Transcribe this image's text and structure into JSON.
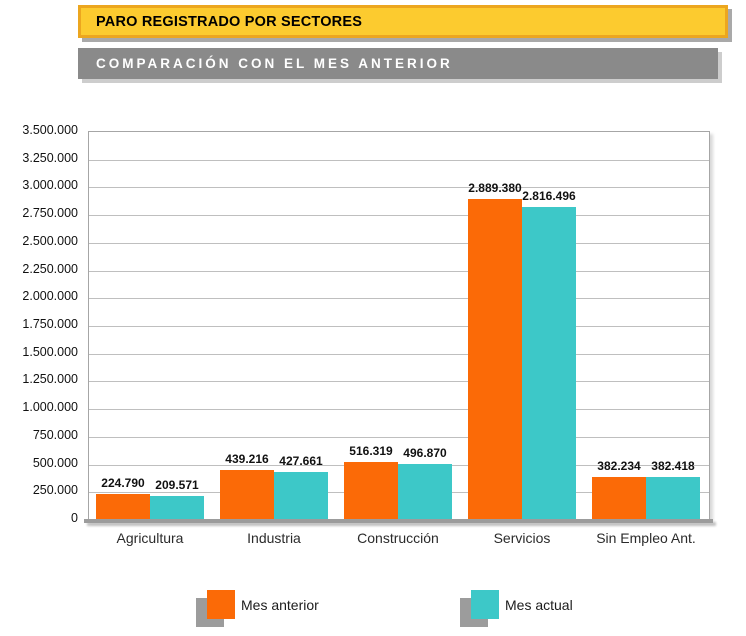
{
  "header": {
    "title": "PARO REGISTRADO POR SECTORES",
    "subtitle": "COMPARACIÓN CON EL MES ANTERIOR"
  },
  "colors": {
    "prev_month": "#FB6A07",
    "current_month": "#3DC8C8",
    "title_bg": "#FCCB2F",
    "title_border": "#ECA61F",
    "subtitle_bg": "#8A8A8A"
  },
  "chart_data": {
    "type": "bar",
    "title": "PARO REGISTRADO POR SECTORES",
    "subtitle": "COMPARACIÓN CON EL MES ANTERIOR",
    "categories": [
      "Agricultura",
      "Industria",
      "Construcción",
      "Servicios",
      "Sin Empleo Ant."
    ],
    "series": [
      {
        "name": "Mes anterior",
        "color_key": "prev_month",
        "values": [
          224790,
          439216,
          516319,
          2889380,
          382234
        ],
        "labels": [
          "224.790",
          "439.216",
          "516.319",
          "2.889.380",
          "382.234"
        ]
      },
      {
        "name": "Mes actual",
        "color_key": "current_month",
        "values": [
          209571,
          427661,
          496870,
          2816496,
          382418
        ],
        "labels": [
          "209.571",
          "427.661",
          "496.870",
          "2.816.496",
          "382.418"
        ]
      }
    ],
    "ylim": [
      0,
      3500000
    ],
    "ytick_step": 250000,
    "ytick_labels": [
      "0",
      "250.000",
      "500.000",
      "750.000",
      "1.000.000",
      "1.250.000",
      "1.500.000",
      "1.750.000",
      "2.000.000",
      "2.250.000",
      "2.500.000",
      "2.750.000",
      "3.000.000",
      "3.250.000",
      "3.500.000"
    ],
    "grid": true,
    "legend_position": "bottom",
    "xlabel": "",
    "ylabel": ""
  }
}
